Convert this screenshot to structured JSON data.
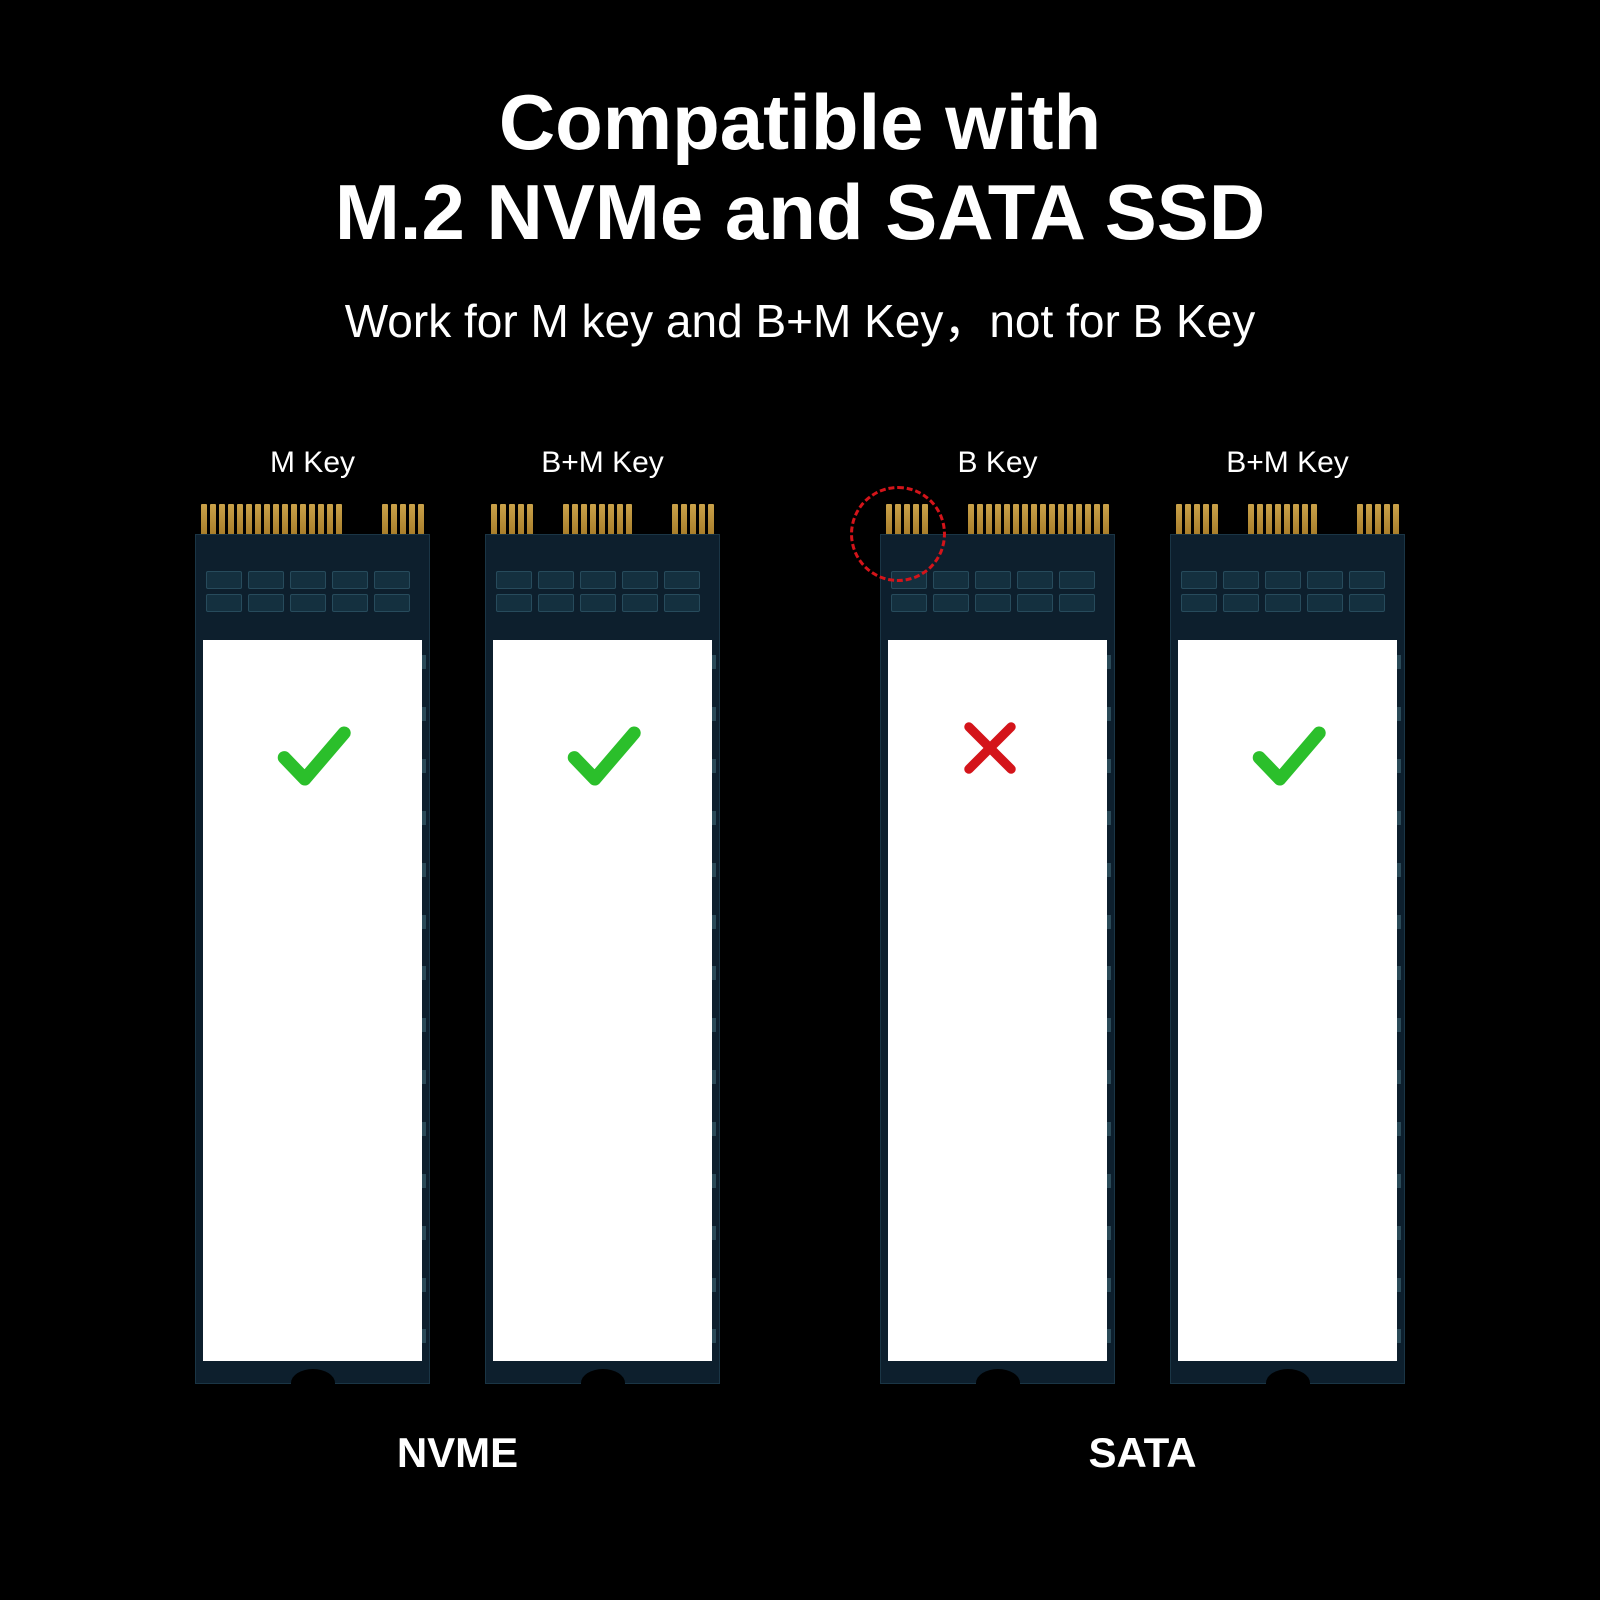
{
  "title_line1": "Compatible with",
  "title_line2": "M.2 NVMe and SATA SSD",
  "subtitle": "Work for M key and B+M Key，not for B Key",
  "colors": {
    "background": "#000000",
    "text": "#ffffff",
    "pcb": "#0d1f2d",
    "pcb_border": "#1a3545",
    "gold1": "#caa24a",
    "gold2": "#a97f2c",
    "white_label": "#ffffff",
    "check": "#2bbf2b",
    "cross": "#d4141a",
    "highlight": "#d4141a"
  },
  "groups": [
    {
      "label": "NVME",
      "items": [
        {
          "key_label": "M Key",
          "notch": "m",
          "status": "check",
          "highlight": false
        },
        {
          "key_label": "B+M Key",
          "notch": "bm",
          "status": "check",
          "highlight": false
        }
      ]
    },
    {
      "label": "SATA",
      "items": [
        {
          "key_label": "B Key",
          "notch": "b",
          "status": "cross",
          "highlight": true
        },
        {
          "key_label": "B+M Key",
          "notch": "bm",
          "status": "check",
          "highlight": false
        }
      ]
    }
  ],
  "connector": {
    "total_pins_visual": 24,
    "notch_pins": 3,
    "m_key_right_pins": 5,
    "b_key_left_pins": 5
  }
}
